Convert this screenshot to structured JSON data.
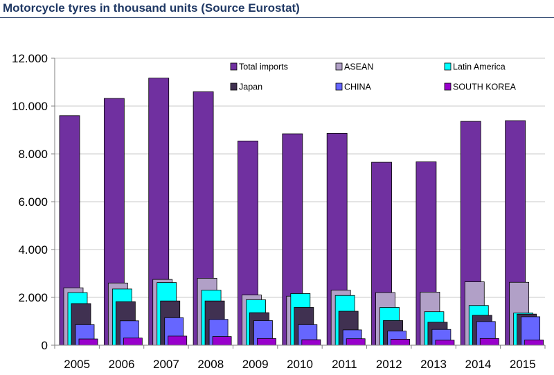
{
  "header": {
    "title": "Motorcycle tyres in thousand units (Source Eurostat)"
  },
  "chart_data": {
    "type": "bar",
    "title": "Motorcycle tyres in thousand units (Source Eurostat)",
    "xlabel": "",
    "ylabel": "",
    "categories": [
      "2005",
      "2006",
      "2007",
      "2008",
      "2009",
      "2010",
      "2011",
      "2012",
      "2013",
      "2014",
      "2015"
    ],
    "ylim": [
      0,
      12000
    ],
    "yticks": [
      0,
      2000,
      4000,
      6000,
      8000,
      10000,
      12000
    ],
    "ytick_labels": [
      "0",
      "2.000",
      "4.000",
      "6.000",
      "8.000",
      "10.000",
      "12.000"
    ],
    "grid": true,
    "legend_position": "top-right",
    "series": [
      {
        "name": "Total imports",
        "color": "#7030a0",
        "values": [
          9600,
          10320,
          11170,
          10600,
          8540,
          8840,
          8860,
          7650,
          7670,
          9360,
          9390
        ]
      },
      {
        "name": "ASEAN",
        "color": "#b1a0c7",
        "values": [
          2400,
          2600,
          2750,
          2800,
          2100,
          2050,
          2300,
          2200,
          2220,
          2650,
          2630
        ]
      },
      {
        "name": "Latin America",
        "color": "#00ffff",
        "values": [
          2200,
          2350,
          2620,
          2300,
          1900,
          2160,
          2080,
          1580,
          1400,
          1660,
          1350
        ]
      },
      {
        "name": "Japan",
        "color": "#403151",
        "values": [
          1740,
          1820,
          1850,
          1850,
          1360,
          1580,
          1420,
          1030,
          960,
          1250,
          1300
        ]
      },
      {
        "name": "CHINA",
        "color": "#6666ff",
        "values": [
          860,
          1020,
          1150,
          1080,
          1030,
          860,
          640,
          590,
          660,
          990,
          1190
        ]
      },
      {
        "name": "SOUTH KOREA",
        "color": "#9900cc",
        "values": [
          260,
          300,
          380,
          360,
          280,
          230,
          270,
          250,
          210,
          280,
          220
        ]
      }
    ]
  }
}
